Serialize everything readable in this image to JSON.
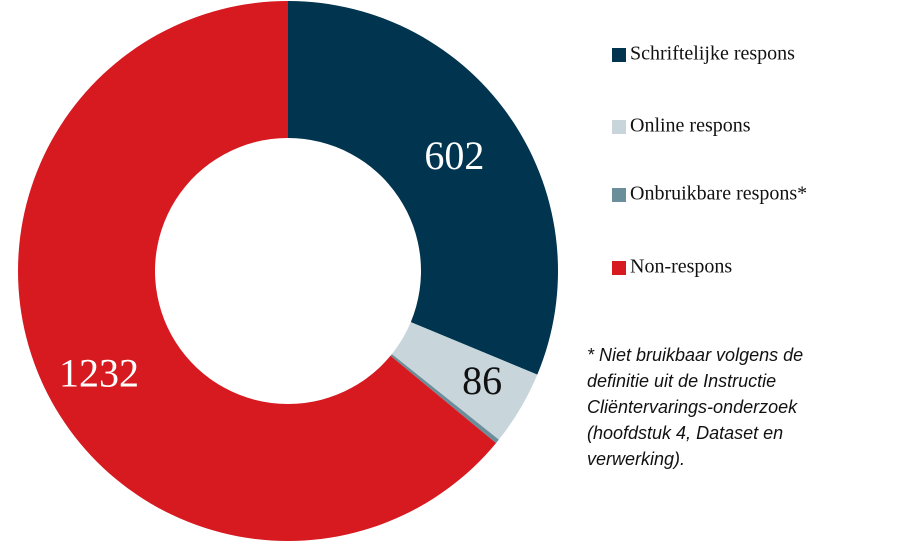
{
  "chart_data": {
    "type": "donut",
    "categories": [
      "Schriftelijke respons",
      "Online respons",
      "Onbruikbare respons*",
      "Non-respons"
    ],
    "values": [
      602,
      86,
      5,
      1232
    ],
    "colors": [
      "#00344f",
      "#c8d5db",
      "#6a8e9a",
      "#d71920"
    ],
    "label_colors": [
      "#ffffff",
      "#111111",
      "#ffffff",
      "#ffffff"
    ],
    "footnote": [
      "* Niet bruikbaar volgens de",
      "definitie uit de Instructie",
      "Cliëntervarings-onderzoek",
      "(hoofdstuk 4, Dataset en",
      "verwerking)."
    ]
  }
}
